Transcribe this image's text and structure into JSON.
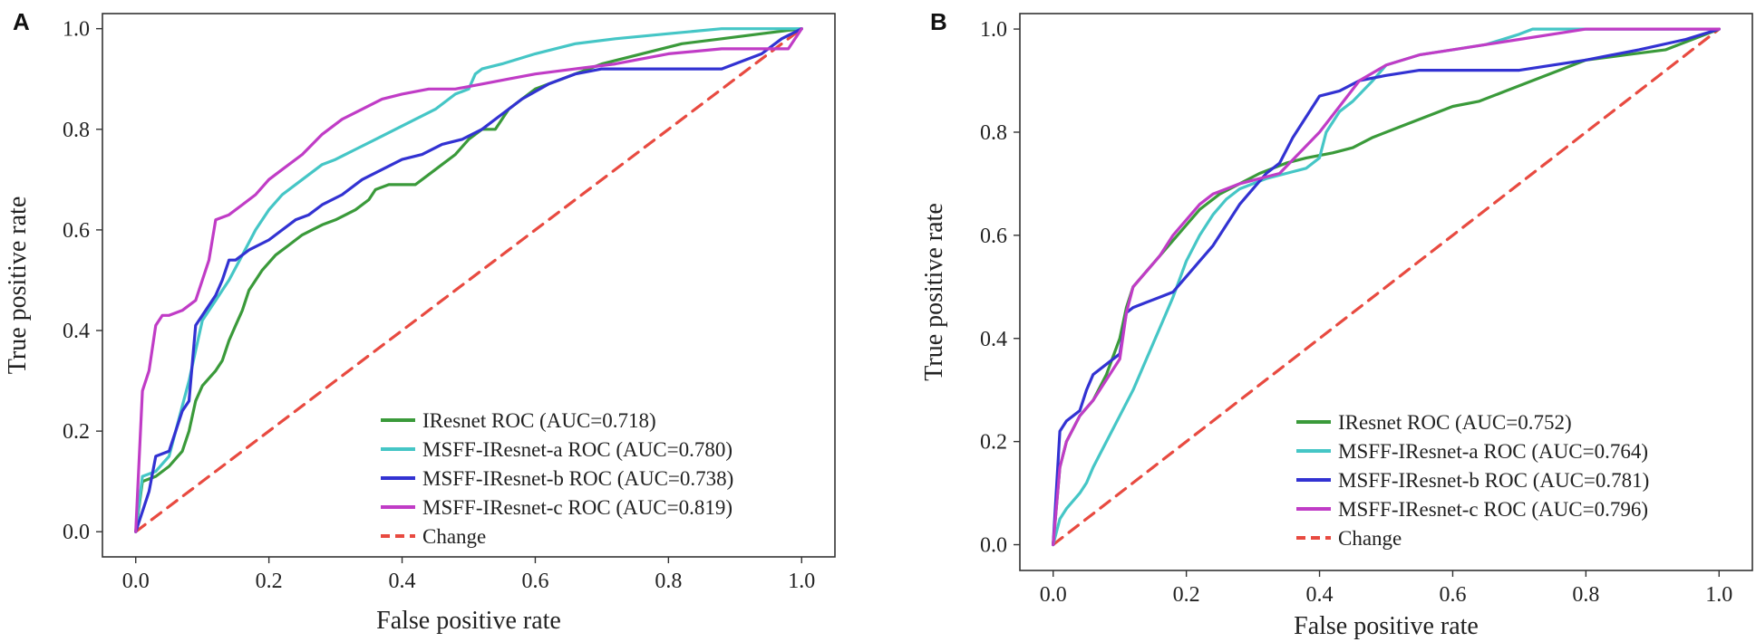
{
  "chart_data": [
    {
      "panel": "A",
      "type": "line",
      "xlabel": "False positive rate",
      "ylabel": "True positive rate",
      "xlim": [
        -0.05,
        1.05
      ],
      "ylim": [
        -0.05,
        1.03
      ],
      "xticks": [
        "0.0",
        "0.2",
        "0.4",
        "0.6",
        "0.8",
        "1.0"
      ],
      "yticks": [
        "0.0",
        "0.2",
        "0.4",
        "0.6",
        "0.8",
        "1.0"
      ],
      "grid": false,
      "legend_position": "bottom-right",
      "series": [
        {
          "name": "IResnet ROC (AUC=0.718)",
          "color": "#3a9a3a",
          "dash": false,
          "x": [
            0,
            0.01,
            0.03,
            0.05,
            0.07,
            0.08,
            0.09,
            0.1,
            0.12,
            0.13,
            0.14,
            0.15,
            0.16,
            0.17,
            0.19,
            0.21,
            0.23,
            0.25,
            0.28,
            0.3,
            0.33,
            0.35,
            0.36,
            0.38,
            0.42,
            0.44,
            0.46,
            0.48,
            0.5,
            0.52,
            0.54,
            0.55,
            0.56,
            0.58,
            0.6,
            0.64,
            0.7,
            0.76,
            0.82,
            0.88,
            0.94,
            1.0
          ],
          "y": [
            0,
            0.1,
            0.11,
            0.13,
            0.16,
            0.2,
            0.26,
            0.29,
            0.32,
            0.34,
            0.38,
            0.41,
            0.44,
            0.48,
            0.52,
            0.55,
            0.57,
            0.59,
            0.61,
            0.62,
            0.64,
            0.66,
            0.68,
            0.69,
            0.69,
            0.71,
            0.73,
            0.75,
            0.78,
            0.8,
            0.8,
            0.82,
            0.84,
            0.86,
            0.88,
            0.9,
            0.93,
            0.95,
            0.97,
            0.98,
            0.99,
            1.0
          ]
        },
        {
          "name": "MSFF-IResnet-a ROC (AUC=0.780)",
          "color": "#45c6c6",
          "dash": false,
          "x": [
            0,
            0.01,
            0.03,
            0.05,
            0.07,
            0.08,
            0.09,
            0.1,
            0.12,
            0.14,
            0.16,
            0.18,
            0.2,
            0.22,
            0.25,
            0.28,
            0.3,
            0.33,
            0.36,
            0.39,
            0.42,
            0.45,
            0.48,
            0.5,
            0.51,
            0.52,
            0.55,
            0.6,
            0.66,
            0.72,
            0.8,
            0.88,
            0.95,
            1.0
          ],
          "y": [
            0,
            0.11,
            0.12,
            0.15,
            0.25,
            0.3,
            0.36,
            0.42,
            0.46,
            0.5,
            0.55,
            0.6,
            0.64,
            0.67,
            0.7,
            0.73,
            0.74,
            0.76,
            0.78,
            0.8,
            0.82,
            0.84,
            0.87,
            0.88,
            0.91,
            0.92,
            0.93,
            0.95,
            0.97,
            0.98,
            0.99,
            1.0,
            1.0,
            1.0
          ]
        },
        {
          "name": "MSFF-IResnet-b ROC (AUC=0.738)",
          "color": "#3232d2",
          "dash": false,
          "x": [
            0,
            0.01,
            0.02,
            0.03,
            0.05,
            0.06,
            0.07,
            0.08,
            0.09,
            0.1,
            0.12,
            0.13,
            0.14,
            0.15,
            0.17,
            0.2,
            0.22,
            0.24,
            0.26,
            0.28,
            0.31,
            0.34,
            0.37,
            0.4,
            0.43,
            0.46,
            0.49,
            0.52,
            0.55,
            0.58,
            0.62,
            0.66,
            0.7,
            0.76,
            0.82,
            0.88,
            0.94,
            0.97,
            1.0
          ],
          "y": [
            0,
            0.04,
            0.08,
            0.15,
            0.16,
            0.2,
            0.24,
            0.26,
            0.41,
            0.43,
            0.47,
            0.5,
            0.54,
            0.54,
            0.56,
            0.58,
            0.6,
            0.62,
            0.63,
            0.65,
            0.67,
            0.7,
            0.72,
            0.74,
            0.75,
            0.77,
            0.78,
            0.8,
            0.83,
            0.86,
            0.89,
            0.91,
            0.92,
            0.92,
            0.92,
            0.92,
            0.95,
            0.98,
            1.0
          ]
        },
        {
          "name": "MSFF-IResnet-c ROC (AUC=0.819)",
          "color": "#c03cc6",
          "dash": false,
          "x": [
            0,
            0.01,
            0.02,
            0.03,
            0.04,
            0.05,
            0.07,
            0.09,
            0.1,
            0.11,
            0.12,
            0.14,
            0.16,
            0.18,
            0.2,
            0.22,
            0.25,
            0.28,
            0.31,
            0.34,
            0.37,
            0.4,
            0.44,
            0.48,
            0.52,
            0.56,
            0.6,
            0.66,
            0.72,
            0.8,
            0.88,
            0.94,
            0.98,
            1.0
          ],
          "y": [
            0,
            0.28,
            0.32,
            0.41,
            0.43,
            0.43,
            0.44,
            0.46,
            0.5,
            0.54,
            0.62,
            0.63,
            0.65,
            0.67,
            0.7,
            0.72,
            0.75,
            0.79,
            0.82,
            0.84,
            0.86,
            0.87,
            0.88,
            0.88,
            0.89,
            0.9,
            0.91,
            0.92,
            0.93,
            0.95,
            0.96,
            0.96,
            0.96,
            1.0
          ]
        },
        {
          "name": "Change",
          "color": "#e84a40",
          "dash": true,
          "x": [
            0,
            1
          ],
          "y": [
            0,
            1
          ]
        }
      ]
    },
    {
      "panel": "B",
      "type": "line",
      "xlabel": "False positive rate",
      "ylabel": "True positive rate",
      "xlim": [
        -0.05,
        1.05
      ],
      "ylim": [
        -0.05,
        1.03
      ],
      "xticks": [
        "0.0",
        "0.2",
        "0.4",
        "0.6",
        "0.8",
        "1.0"
      ],
      "yticks": [
        "0.0",
        "0.2",
        "0.4",
        "0.6",
        "0.8",
        "1.0"
      ],
      "grid": false,
      "legend_position": "bottom-right",
      "series": [
        {
          "name": "IResnet ROC (AUC=0.752)",
          "color": "#3a9a3a",
          "dash": false,
          "x": [
            0,
            0.01,
            0.02,
            0.04,
            0.06,
            0.08,
            0.1,
            0.11,
            0.12,
            0.14,
            0.16,
            0.18,
            0.2,
            0.22,
            0.25,
            0.28,
            0.31,
            0.35,
            0.38,
            0.42,
            0.45,
            0.48,
            0.52,
            0.56,
            0.6,
            0.64,
            0.68,
            0.72,
            0.76,
            0.8,
            0.86,
            0.92,
            0.96,
            1.0
          ],
          "y": [
            0,
            0.15,
            0.2,
            0.25,
            0.28,
            0.33,
            0.4,
            0.46,
            0.5,
            0.53,
            0.56,
            0.59,
            0.62,
            0.65,
            0.68,
            0.7,
            0.72,
            0.74,
            0.75,
            0.76,
            0.77,
            0.79,
            0.81,
            0.83,
            0.85,
            0.86,
            0.88,
            0.9,
            0.92,
            0.94,
            0.95,
            0.96,
            0.98,
            1.0
          ]
        },
        {
          "name": "MSFF-IResnet-a ROC (AUC=0.764)",
          "color": "#45c6c6",
          "dash": false,
          "x": [
            0,
            0.01,
            0.02,
            0.04,
            0.05,
            0.06,
            0.08,
            0.1,
            0.12,
            0.14,
            0.16,
            0.18,
            0.2,
            0.22,
            0.24,
            0.26,
            0.28,
            0.3,
            0.32,
            0.35,
            0.38,
            0.4,
            0.41,
            0.43,
            0.45,
            0.48,
            0.5,
            0.55,
            0.6,
            0.65,
            0.7,
            0.72,
            0.75,
            0.8,
            0.9,
            1.0
          ],
          "y": [
            0,
            0.05,
            0.07,
            0.1,
            0.12,
            0.15,
            0.2,
            0.25,
            0.3,
            0.36,
            0.42,
            0.48,
            0.55,
            0.6,
            0.64,
            0.67,
            0.69,
            0.7,
            0.71,
            0.72,
            0.73,
            0.75,
            0.8,
            0.84,
            0.86,
            0.9,
            0.93,
            0.95,
            0.96,
            0.97,
            0.99,
            1.0,
            1.0,
            1.0,
            1.0,
            1.0
          ]
        },
        {
          "name": "MSFF-IResnet-b ROC (AUC=0.781)",
          "color": "#3232d2",
          "dash": false,
          "x": [
            0,
            0.01,
            0.02,
            0.03,
            0.04,
            0.05,
            0.06,
            0.08,
            0.1,
            0.11,
            0.12,
            0.14,
            0.16,
            0.18,
            0.2,
            0.22,
            0.24,
            0.26,
            0.28,
            0.3,
            0.32,
            0.34,
            0.36,
            0.38,
            0.4,
            0.43,
            0.46,
            0.5,
            0.55,
            0.6,
            0.65,
            0.7,
            0.75,
            0.8,
            0.88,
            0.95,
            1.0
          ],
          "y": [
            0,
            0.22,
            0.24,
            0.25,
            0.26,
            0.3,
            0.33,
            0.35,
            0.37,
            0.45,
            0.46,
            0.47,
            0.48,
            0.49,
            0.52,
            0.55,
            0.58,
            0.62,
            0.66,
            0.69,
            0.72,
            0.74,
            0.79,
            0.83,
            0.87,
            0.88,
            0.9,
            0.91,
            0.92,
            0.92,
            0.92,
            0.92,
            0.93,
            0.94,
            0.96,
            0.98,
            1.0
          ]
        },
        {
          "name": "MSFF-IResnet-c ROC (AUC=0.796)",
          "color": "#c03cc6",
          "dash": false,
          "x": [
            0,
            0.01,
            0.02,
            0.04,
            0.06,
            0.08,
            0.1,
            0.11,
            0.12,
            0.14,
            0.16,
            0.18,
            0.2,
            0.22,
            0.24,
            0.26,
            0.28,
            0.31,
            0.34,
            0.37,
            0.4,
            0.43,
            0.46,
            0.5,
            0.55,
            0.6,
            0.65,
            0.7,
            0.75,
            0.8,
            0.9,
            1.0
          ],
          "y": [
            0,
            0.15,
            0.2,
            0.25,
            0.28,
            0.32,
            0.36,
            0.45,
            0.5,
            0.53,
            0.56,
            0.6,
            0.63,
            0.66,
            0.68,
            0.69,
            0.7,
            0.71,
            0.72,
            0.76,
            0.8,
            0.85,
            0.9,
            0.93,
            0.95,
            0.96,
            0.97,
            0.98,
            0.99,
            1.0,
            1.0,
            1.0
          ]
        },
        {
          "name": "Change",
          "color": "#e84a40",
          "dash": true,
          "x": [
            0,
            1
          ],
          "y": [
            0,
            1
          ]
        }
      ]
    }
  ]
}
